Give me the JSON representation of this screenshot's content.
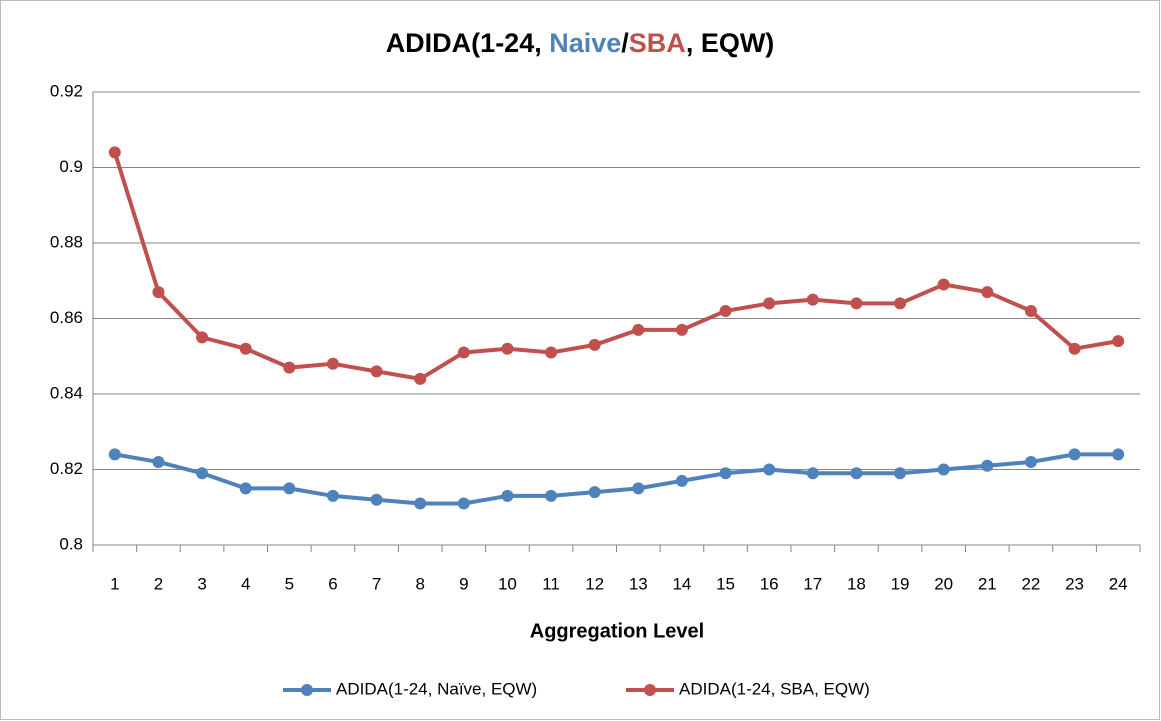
{
  "chart_data": {
    "type": "line",
    "title": [
      "ADIDA(1-24, ",
      "Naive",
      "/",
      "SBA",
      ", EQW)"
    ],
    "x_label": "Aggregation Level",
    "categories": [
      "1",
      "2",
      "3",
      "4",
      "5",
      "6",
      "7",
      "8",
      "9",
      "10",
      "11",
      "12",
      "13",
      "14",
      "15",
      "16",
      "17",
      "18",
      "19",
      "20",
      "21",
      "22",
      "23",
      "24"
    ],
    "series": [
      {
        "name": "ADIDA(1-24, Naïve, EQW)",
        "color": "#4f81bd",
        "values": [
          0.824,
          0.822,
          0.819,
          0.815,
          0.815,
          0.813,
          0.812,
          0.811,
          0.811,
          0.813,
          0.813,
          0.814,
          0.815,
          0.817,
          0.819,
          0.82,
          0.819,
          0.819,
          0.819,
          0.82,
          0.821,
          0.822,
          0.824,
          0.824
        ]
      },
      {
        "name": "ADIDA(1-24, SBA, EQW)",
        "color": "#c0504d",
        "values": [
          0.904,
          0.867,
          0.855,
          0.852,
          0.847,
          0.848,
          0.846,
          0.844,
          0.851,
          0.852,
          0.851,
          0.853,
          0.857,
          0.857,
          0.862,
          0.864,
          0.865,
          0.864,
          0.864,
          0.869,
          0.867,
          0.862,
          0.852,
          0.854
        ]
      }
    ],
    "ylim": [
      0.8,
      0.92
    ],
    "yticks": [
      0.8,
      0.82,
      0.84,
      0.86,
      0.88,
      0.9,
      0.92
    ],
    "grid": true,
    "legend": "bottom"
  }
}
